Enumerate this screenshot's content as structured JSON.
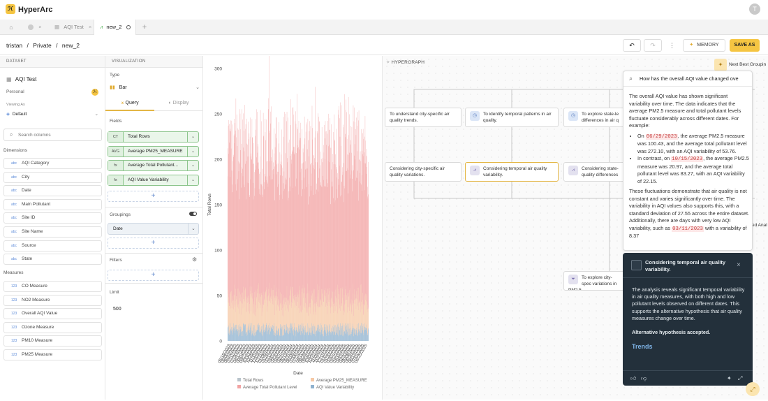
{
  "app": {
    "name": "HyperArc",
    "user_initial": "T"
  },
  "tabs": [
    {
      "label": "",
      "icon": "home-icon"
    },
    {
      "label": "",
      "icon": "globe-icon"
    },
    {
      "label": "AQI Test",
      "icon": "table-icon"
    },
    {
      "label": "new_2",
      "icon": "chart-icon",
      "active": true
    }
  ],
  "breadcrumb": {
    "user": "tristan",
    "folder": "Private",
    "page": "new_2",
    "sep": "/"
  },
  "toolbar": {
    "memory_label": "MEMORY",
    "save_label": "SAVE AS"
  },
  "dataset": {
    "header": "DATASET",
    "name": "AQI Test",
    "owner": "Personal",
    "viewing_as_label": "Viewing As",
    "viewing_as_value": "Default",
    "search_placeholder": "Search columns",
    "dimensions_label": "Dimensions",
    "dimensions": [
      "AQI Category",
      "City",
      "Date",
      "Main Pollutant",
      "Site ID",
      "Site Name",
      "Source",
      "State"
    ],
    "measures_label": "Measures",
    "measures": [
      "CO Measure",
      "NO2 Measure",
      "Overall AQI Value",
      "Ozone Measure",
      "PM10 Measure",
      "PM25 Measure"
    ]
  },
  "visualization": {
    "header": "VISUALIZATION",
    "type_label": "Type",
    "type_value": "Bar",
    "query_tab": "Query",
    "display_tab": "Display",
    "fields_label": "Fields",
    "fields": [
      {
        "tag": "CT",
        "label": "Total Rows"
      },
      {
        "tag": "AVG",
        "label": "Average PM25_MEASURE"
      },
      {
        "tag": "fx",
        "label": "Average Total Pollutant..."
      },
      {
        "tag": "fx",
        "label": "AQI Value Variability"
      }
    ],
    "groupings_label": "Groupings",
    "grouping_value": "Date",
    "filters_label": "Filters",
    "limit_label": "Limit",
    "limit_value": "500"
  },
  "chart_data": {
    "type": "bar",
    "stacked": true,
    "ylabel": "Total Rows",
    "xlabel": "Date",
    "ylim": [
      0,
      300
    ],
    "yticks": [
      0,
      50,
      100,
      150,
      200,
      250,
      300
    ],
    "x_tick_labels": [
      "05/18/2023",
      "06/06/2023",
      "06/24/2023",
      "07/12/2023",
      "07/30/2023",
      "08/17/2023",
      "09/04/2023",
      "09/22/2023",
      "10/10/2023",
      "10/28/2023",
      "11/15/2023",
      "12/03/2023",
      "12/21/2023",
      "01/08/2024",
      "01/26/2024",
      "02/13/2024",
      "03/02/2024",
      "03/20/2024",
      "04/07/2024",
      "04/25/2024",
      "05/13/2024",
      "05/31/2024",
      "06/18/2024",
      "07/06/2024",
      "07/24/2024",
      "08/11/2024",
      "08/29/2024",
      "09/16/2024",
      "10/04/2024",
      "10/22/2024",
      "11/09/2024",
      "11/27/2024",
      "12/15/2024",
      "01/02/2025",
      "01/20/2025",
      "02/07/2025",
      "02/25/2025",
      "03/15/2025",
      "04/02/2025",
      "04/20/2025",
      "05/08/2025",
      "05/26/2025",
      "06/13/2025",
      "07/01/2025",
      "06/25/2025"
    ],
    "legend": [
      "Total Rows",
      "Average PM25_MEASURE",
      "Average Total Pollutant Level",
      "AQI Value Variability"
    ],
    "colors": {
      "total_rows": "#b9c4cc",
      "pm25": "#f6c9a6",
      "pollutant": "#f2a3a3",
      "variability": "#8fb2cf"
    },
    "series_summary": {
      "bars": 500,
      "total_pollutant_typical_range": [
        120,
        210
      ],
      "pm25_typical_range": [
        20,
        45
      ],
      "variability_typical_range": [
        5,
        20
      ],
      "max_value": 272
    }
  },
  "hypergraph": {
    "header": "HYPERGRAPH",
    "next_best": "Next Best Groupin",
    "nodes_top": [
      {
        "text": "To understand city-specific air quality trends.",
        "icon": ""
      },
      {
        "text": "To identify temporal patterns in air quality.",
        "icon": "clock-icon"
      },
      {
        "text": "To explore state-le differences in air q",
        "icon": "clock-icon"
      }
    ],
    "nodes_mid": [
      {
        "text": "Considering city-specific air quality variations.",
        "icon": ""
      },
      {
        "text": "Considering temporal air quality variability.",
        "icon": "chart-icon",
        "selected": true
      },
      {
        "text": "Considering state- quality differences",
        "icon": "chart-icon"
      }
    ],
    "node_bottom": {
      "text": "To explore city-spec variations in PM2.5",
      "icon": "funnel-icon"
    },
    "side_label": "ed Anal"
  },
  "answer": {
    "query": "How has the overall AQI value changed ove",
    "intro": "The overall AQI value has shown significant variability over time. The data indicates that the average PM2.5 measure and total pollutant levels fluctuate considerably across different dates. For example:",
    "b1_pre": "On ",
    "b1_date": "06/29/2023",
    "b1_post": ", the average PM2.5 measure was 100.43, and the average total pollutant level was 272.10, with an AQI variability of 53.76.",
    "b2_pre": "In contrast, on ",
    "b2_date": "10/15/2023",
    "b2_post": ", the average PM2.5 measure was 20.97, and the average total pollutant level was 83.27, with an AQI variability of 22.15.",
    "outro_pre": "These fluctuations demonstrate that air quality is not constant and varies significantly over time. The variability in AQI values also supports this, with a standard deviation of 27.55 across the entire dataset. Additionally, there are days with very low AQI variability, such as ",
    "outro_date": "03/11/2023",
    "outro_post": " with a variability of 8.37"
  },
  "insight": {
    "title": "Considering temporal air quality variability.",
    "body": "The analysis reveals significant temporal variability in air quality measures, with both high and low pollutant levels observed on different dates. This supports the alternative hypothesis that air quality measures change over time.",
    "verdict": "Alternative hypothesis accepted.",
    "link": "Trends"
  }
}
